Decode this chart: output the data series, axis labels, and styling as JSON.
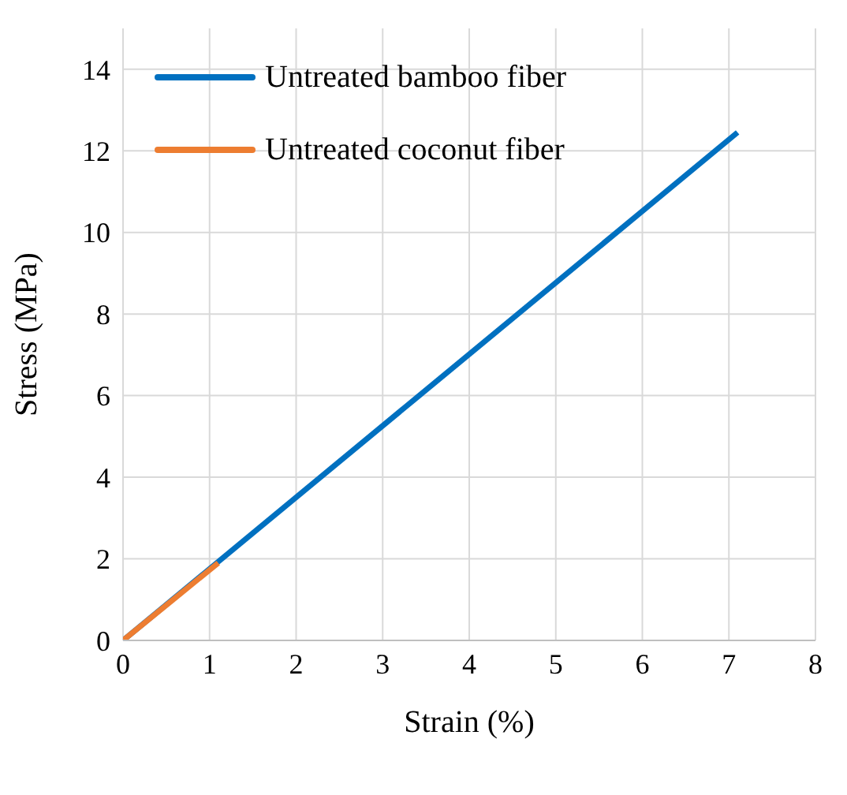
{
  "chart_data": {
    "type": "line",
    "xlabel": "Strain (%)",
    "ylabel": "Stress (MPa)",
    "xlim": [
      0,
      8
    ],
    "xticks": [
      0,
      1,
      2,
      3,
      4,
      5,
      6,
      7,
      8
    ],
    "ylim": [
      0,
      15
    ],
    "yticks": [
      0,
      2,
      4,
      6,
      8,
      10,
      12,
      14
    ],
    "grid": true,
    "legend": "top left",
    "marker": "none",
    "line_style": "solid",
    "series": [
      {
        "name": "Untreated bamboo fiber",
        "color": "#0070c0",
        "x": [
          0,
          7.1
        ],
        "values": [
          0,
          12.45
        ]
      },
      {
        "name": "Untreated coconut fiber",
        "color": "#ed7d31",
        "x": [
          0,
          1.1
        ],
        "values": [
          0,
          1.9
        ]
      }
    ]
  }
}
